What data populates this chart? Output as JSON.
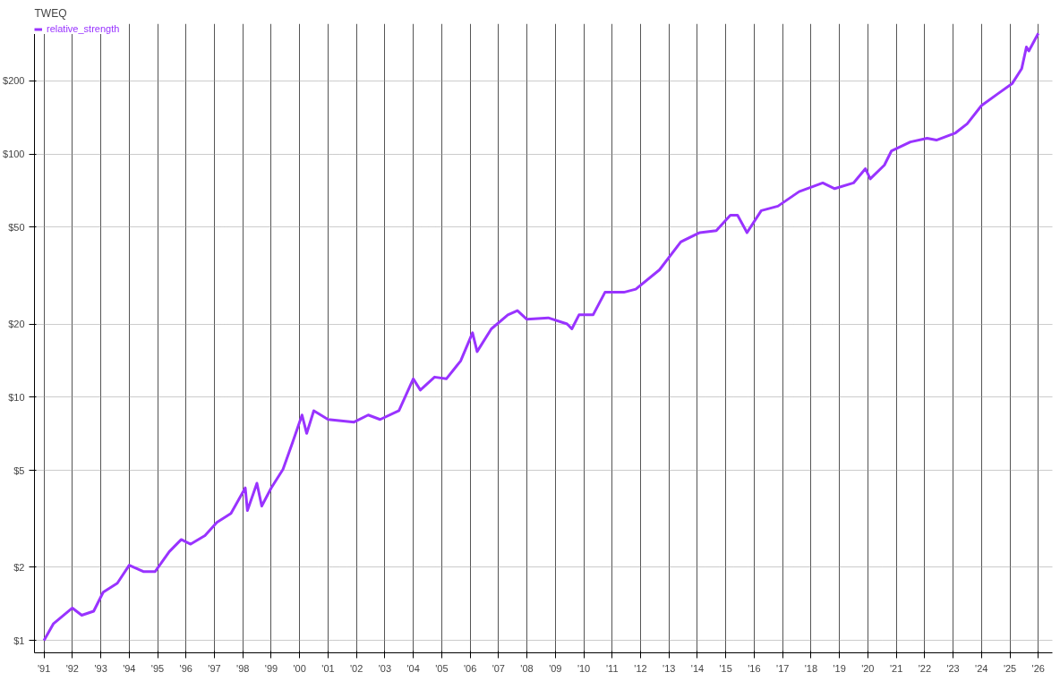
{
  "chart_data": {
    "type": "line",
    "title": "TWEQ",
    "log": "y",
    "grid": true,
    "legend": "top left",
    "marker": "none",
    "line_style": "solid",
    "xlim": [
      "1990-09",
      "2026-07"
    ],
    "ylim": [
      0.89,
      343
    ],
    "xticks": [
      {
        "value": "1991",
        "label": "'91"
      },
      {
        "value": "1992",
        "label": "'92"
      },
      {
        "value": "1993",
        "label": "'93"
      },
      {
        "value": "1994",
        "label": "'94"
      },
      {
        "value": "1995",
        "label": "'95"
      },
      {
        "value": "1996",
        "label": "'96"
      },
      {
        "value": "1997",
        "label": "'97"
      },
      {
        "value": "1998",
        "label": "'98"
      },
      {
        "value": "1999",
        "label": "'99"
      },
      {
        "value": "2000",
        "label": "'00"
      },
      {
        "value": "2001",
        "label": "'01"
      },
      {
        "value": "2002",
        "label": "'02"
      },
      {
        "value": "2003",
        "label": "'03"
      },
      {
        "value": "2004",
        "label": "'04"
      },
      {
        "value": "2005",
        "label": "'05"
      },
      {
        "value": "2006",
        "label": "'06"
      },
      {
        "value": "2007",
        "label": "'07"
      },
      {
        "value": "2008",
        "label": "'08"
      },
      {
        "value": "2009",
        "label": "'09"
      },
      {
        "value": "2010",
        "label": "'10"
      },
      {
        "value": "2011",
        "label": "'11"
      },
      {
        "value": "2012",
        "label": "'12"
      },
      {
        "value": "2013",
        "label": "'13"
      },
      {
        "value": "2014",
        "label": "'14"
      },
      {
        "value": "2015",
        "label": "'15"
      },
      {
        "value": "2016",
        "label": "'16"
      },
      {
        "value": "2017",
        "label": "'17"
      },
      {
        "value": "2018",
        "label": "'18"
      },
      {
        "value": "2019",
        "label": "'19"
      },
      {
        "value": "2020",
        "label": "'20"
      },
      {
        "value": "2021",
        "label": "'21"
      },
      {
        "value": "2022",
        "label": "'22"
      },
      {
        "value": "2023",
        "label": "'23"
      },
      {
        "value": "2024",
        "label": "'24"
      },
      {
        "value": "2025",
        "label": "'25"
      },
      {
        "value": "2026",
        "label": "'26"
      }
    ],
    "yticks": [
      {
        "value": 1,
        "label": "$1"
      },
      {
        "value": 2,
        "label": "$2"
      },
      {
        "value": 5,
        "label": "$5"
      },
      {
        "value": 10,
        "label": "$10"
      },
      {
        "value": 20,
        "label": "$20"
      },
      {
        "value": 50,
        "label": "$50"
      },
      {
        "value": 100,
        "label": "$100"
      },
      {
        "value": 200,
        "label": "$200"
      }
    ],
    "x": [
      "1991-01",
      "1991-05",
      "1992-01",
      "1992-05",
      "1992-10",
      "1993-02",
      "1993-08",
      "1994-01",
      "1994-07",
      "1994-12",
      "1995-06",
      "1995-11",
      "1996-03",
      "1996-09",
      "1997-02",
      "1997-08",
      "1998-02",
      "1998-03",
      "1998-07",
      "1998-09",
      "1999-01",
      "1999-06",
      "1999-10",
      "2000-02",
      "2000-04",
      "2000-07",
      "2001-01",
      "2001-12",
      "2002-06",
      "2002-11",
      "2003-07",
      "2004-01",
      "2004-04",
      "2004-10",
      "2005-03",
      "2005-09",
      "2006-02",
      "2006-04",
      "2006-10",
      "2007-05",
      "2007-09",
      "2008-01",
      "2008-10",
      "2009-06",
      "2009-08",
      "2009-11",
      "2010-05",
      "2010-10",
      "2011-06",
      "2011-11",
      "2012-09",
      "2013-06",
      "2014-02",
      "2014-09",
      "2015-03",
      "2015-06",
      "2015-10",
      "2016-04",
      "2016-11",
      "2017-08",
      "2018-06",
      "2018-11",
      "2019-07",
      "2019-12",
      "2020-02",
      "2020-08",
      "2020-11",
      "2021-07",
      "2022-02",
      "2022-06",
      "2023-02",
      "2023-07",
      "2024-01",
      "2024-08",
      "2025-02",
      "2025-06",
      "2025-08",
      "2025-09",
      "2026-01"
    ],
    "series": [
      {
        "name": "relative_strength",
        "color": "#9933ff",
        "values": [
          1.0,
          1.17,
          1.36,
          1.27,
          1.32,
          1.58,
          1.72,
          2.04,
          1.92,
          1.92,
          2.32,
          2.6,
          2.49,
          2.7,
          3.06,
          3.33,
          4.24,
          3.42,
          4.43,
          3.57,
          4.24,
          5.05,
          6.5,
          8.45,
          7.1,
          8.8,
          8.1,
          7.9,
          8.45,
          8.1,
          8.8,
          11.9,
          10.7,
          12.1,
          11.9,
          14.1,
          18.4,
          15.4,
          19.1,
          21.8,
          22.7,
          20.9,
          21.2,
          20.0,
          19.1,
          21.8,
          21.8,
          27,
          27,
          27.8,
          33.4,
          43.5,
          47.5,
          48.4,
          56,
          56,
          47.5,
          58.5,
          61,
          70,
          76,
          72,
          76,
          87,
          79,
          90,
          103,
          112,
          116,
          114,
          122,
          133,
          158,
          177,
          195,
          224,
          275,
          265,
          313
        ]
      }
    ]
  }
}
